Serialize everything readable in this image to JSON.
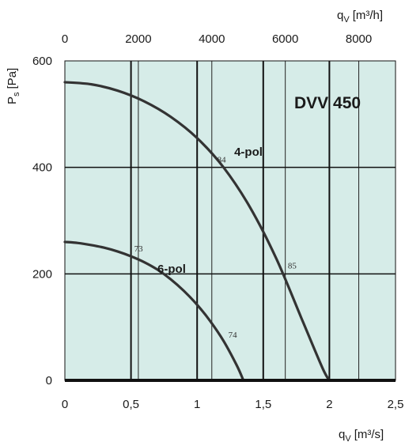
{
  "chart_data": {
    "type": "line",
    "title": "DVV 450",
    "xlabel": {
      "main": "q",
      "sub": "V",
      "unit": "[m³/s]"
    },
    "x2label": {
      "main": "q",
      "sub": "V",
      "unit": "[m³/h]"
    },
    "ylabel": {
      "main": "P",
      "sub": "s",
      "unit": "[Pa]"
    },
    "xlim": [
      0,
      2.5
    ],
    "ylim": [
      0,
      600
    ],
    "x2lim": [
      0,
      9000
    ],
    "x_ticks": [
      "0",
      "0,5",
      "1",
      "1,5",
      "2",
      "2,5"
    ],
    "x_tick_values": [
      0,
      0.5,
      1,
      1.5,
      2,
      2.5
    ],
    "x2_ticks": [
      "0",
      "2000",
      "4000",
      "6000",
      "8000"
    ],
    "x2_tick_values": [
      0,
      2000,
      4000,
      6000,
      8000
    ],
    "y_ticks": [
      "0",
      "200",
      "400",
      "600"
    ],
    "y_tick_values": [
      0,
      200,
      400,
      600
    ],
    "grid": true,
    "background_color": "#d6ece8",
    "line_color": "#333333",
    "series": [
      {
        "name": "4-pol",
        "x": [
          0,
          0.2,
          0.4,
          0.6,
          0.8,
          1.0,
          1.2,
          1.4,
          1.6,
          1.8,
          1.95,
          2.0
        ],
        "y": [
          560,
          556,
          544,
          524,
          495,
          455,
          400,
          325,
          228,
          110,
          22,
          0
        ]
      },
      {
        "name": "6-pol",
        "x": [
          0,
          0.1,
          0.2,
          0.3,
          0.4,
          0.5,
          0.6,
          0.7,
          0.8,
          0.9,
          1.0,
          1.1,
          1.2,
          1.3,
          1.35
        ],
        "y": [
          260,
          258,
          254,
          249,
          242,
          233,
          222,
          208,
          190,
          168,
          142,
          111,
          74,
          28,
          0
        ]
      }
    ],
    "point_labels": [
      {
        "text": "84",
        "x": 1.2,
        "y": 400
      },
      {
        "text": "85",
        "x": 1.65,
        "y": 210
      },
      {
        "text": "73",
        "x": 0.5,
        "y": 233
      },
      {
        "text": "74",
        "x": 1.2,
        "y": 74
      }
    ],
    "curve_labels": [
      {
        "text": "4-pol",
        "x": 1.4,
        "y": 325
      },
      {
        "text": "6-pol",
        "x": 0.7,
        "y": 208
      }
    ]
  }
}
